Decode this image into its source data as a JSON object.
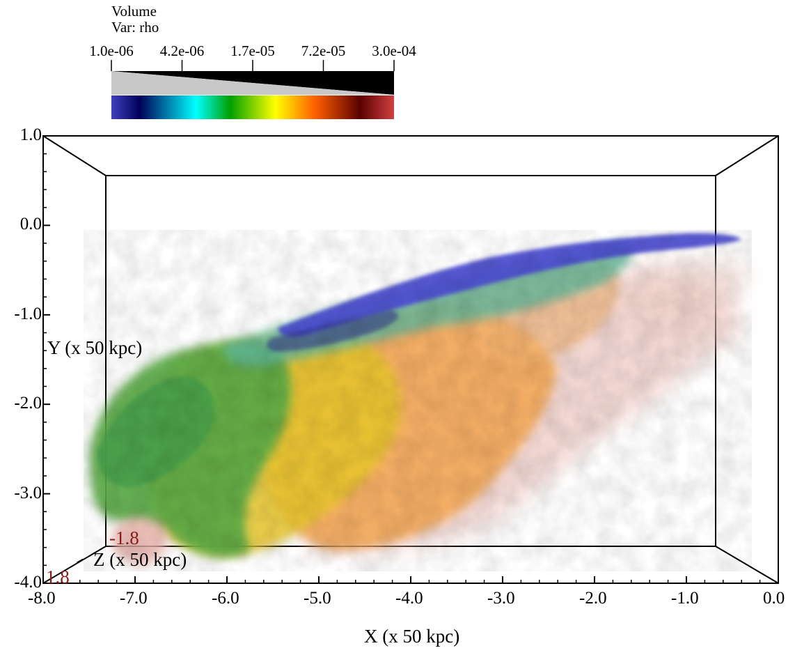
{
  "legend": {
    "title": "Volume",
    "var_label": "Var: rho",
    "tick_labels": [
      "1.0e-06",
      "4.2e-06",
      "1.7e-05",
      "7.2e-05",
      "3.0e-04"
    ],
    "colormap": [
      "#4040c0",
      "#000058",
      "#00ffff",
      "#00a000",
      "#ffff00",
      "#ff6000",
      "#5a0000",
      "#d04040"
    ],
    "opacity_ramp_colors": [
      "#c8c8c8",
      "#000000"
    ]
  },
  "chart_data": {
    "type": "volume",
    "title": "",
    "xlabel": "X (x 50 kpc)",
    "ylabel": "Y (x 50 kpc)",
    "zlabel": "Z (x 50 kpc)",
    "xlim": [
      -8.0,
      0.0
    ],
    "ylim": [
      -4.0,
      1.0
    ],
    "zlim": [
      -1.8,
      1.8
    ],
    "x_ticks": [
      -8.0,
      -7.0,
      -6.0,
      -5.0,
      -4.0,
      -3.0,
      -2.0,
      -1.0,
      0.0
    ],
    "x_tick_labels": [
      "-8.0",
      "-7.0",
      "-6.0",
      "-5.0",
      "-4.0",
      "-3.0",
      "-2.0",
      "-1.0",
      "0.0"
    ],
    "y_ticks": [
      1.0,
      0.0,
      -1.0,
      -2.0,
      -3.0,
      -4.0
    ],
    "y_tick_labels": [
      "1.0",
      "0.0",
      "-1.0",
      "-2.0",
      "-3.0",
      "-4.0"
    ],
    "z_tick_labels": [
      "-1.8",
      "1.8"
    ],
    "variable": "rho",
    "color_range": [
      1e-06,
      0.0003
    ],
    "scale": "log"
  }
}
